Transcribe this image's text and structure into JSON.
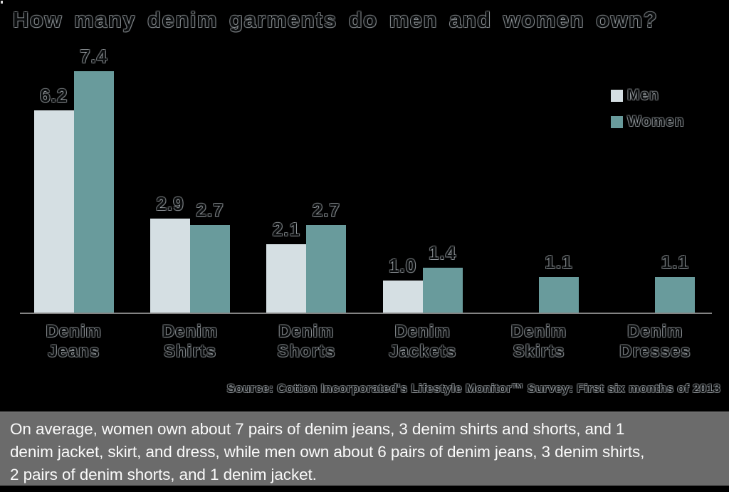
{
  "title": "How many denim garments do men and women own?",
  "source": "Source: Cotton Incorporated's Lifestyle Monitor™ Survey: First six months of 2013",
  "caption": "On average, women own about 7 pairs of denim jeans, 3 denim shirts and shorts, and 1\ndenim jacket, skirt, and dress, while men own about 6 pairs of denim jeans, 3 denim shirts,\n2 pairs of denim shorts, and 1 denim jacket.",
  "legend": {
    "position": "top-right",
    "items": [
      {
        "label": "Men",
        "color": "#d5dfe3"
      },
      {
        "label": "Women",
        "color": "#699b9c"
      }
    ]
  },
  "colors": {
    "background": "#000000",
    "axis_line": "#848484",
    "men_bar": "#d5dfe3",
    "women_bar": "#699b9c",
    "caption_bg": "#6b6b6b",
    "caption_text": "#fafafa"
  },
  "chart_data": {
    "type": "bar",
    "title": "How many denim garments do men and women own?",
    "categories": [
      "Denim\nJeans",
      "Denim\nShirts",
      "Denim\nShorts",
      "Denim\nJackets",
      "Denim\nSkirts",
      "Denim\nDresses"
    ],
    "series": [
      {
        "name": "Men",
        "color": "#d5dfe3",
        "values": [
          6.2,
          2.9,
          2.1,
          1.0,
          null,
          null
        ],
        "labels": [
          "6.2",
          "2.9",
          "2.1",
          "1.0",
          "",
          ""
        ]
      },
      {
        "name": "Women",
        "color": "#699b9c",
        "values": [
          7.4,
          2.7,
          2.7,
          1.4,
          1.1,
          1.1
        ],
        "labels": [
          "7.4",
          "2.7",
          "2.7",
          "1.4",
          "1.1",
          "1.1"
        ]
      }
    ],
    "xlabel": "",
    "ylabel": "",
    "ylim": [
      0,
      8
    ],
    "grid": false,
    "value_labels_shown": true,
    "legend_position": "top-right"
  }
}
